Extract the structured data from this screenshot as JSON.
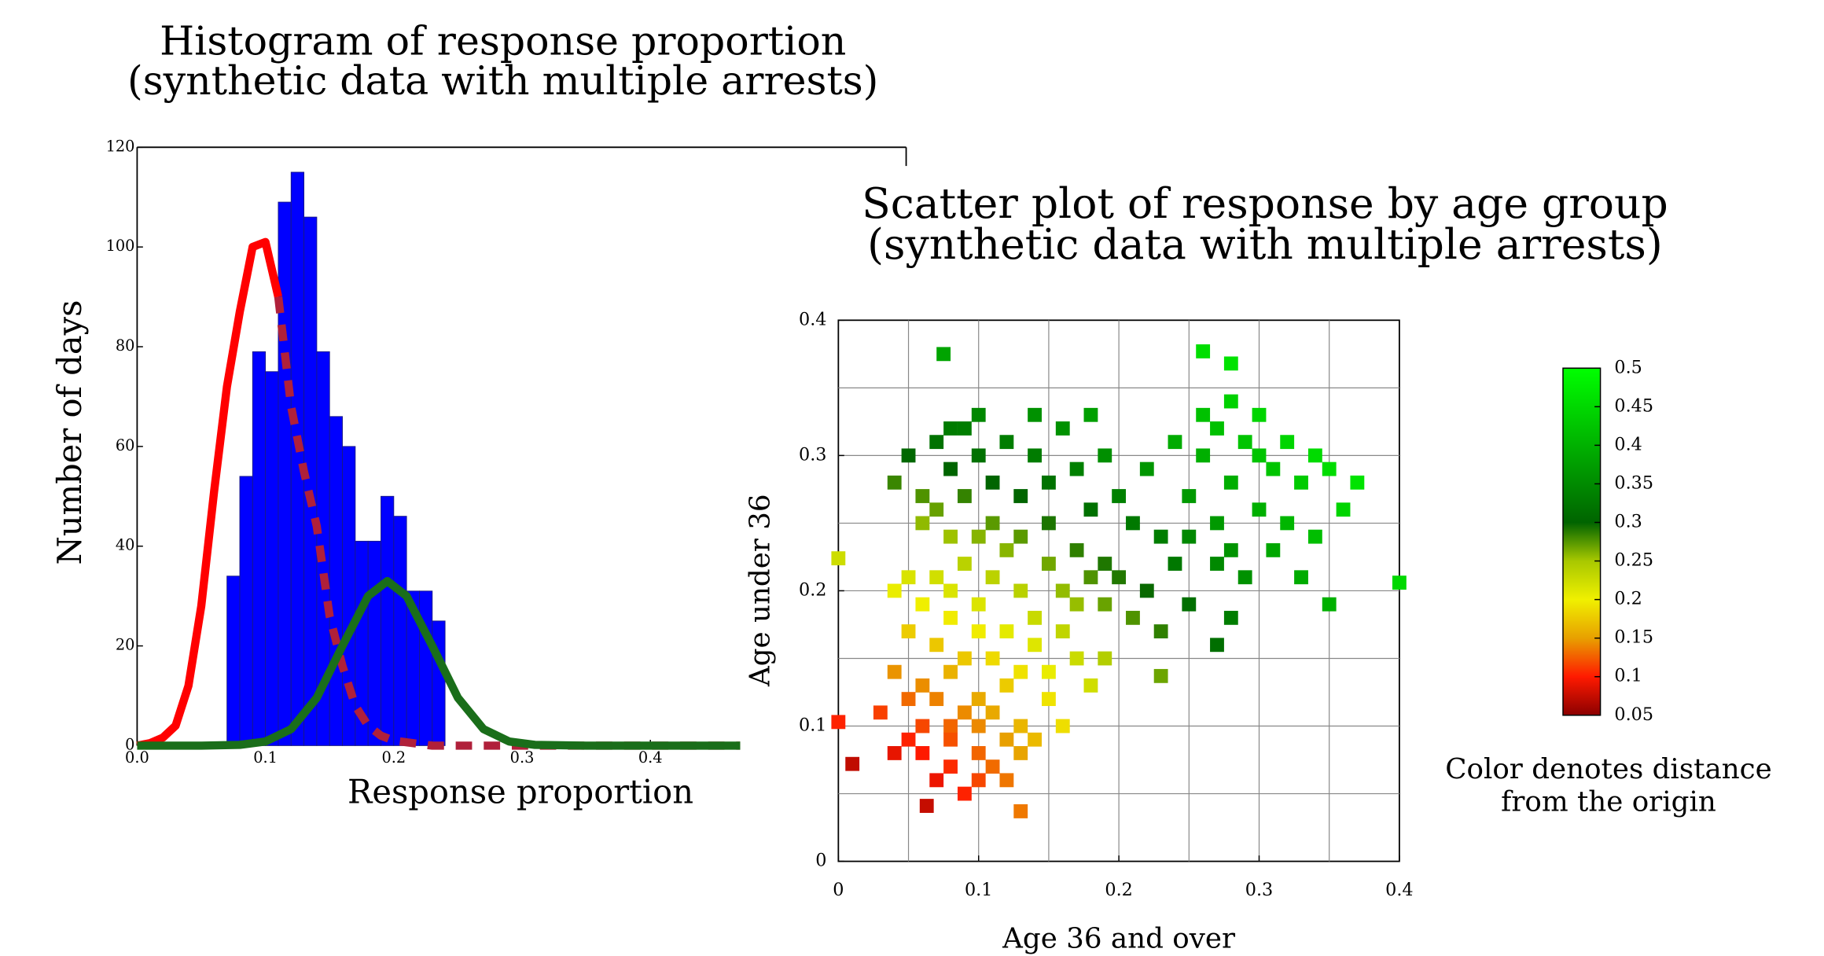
{
  "chart_data": [
    {
      "type": "histogram",
      "title": "Histogram of response proportion",
      "subtitle": "(synthetic data with multiple arrests)",
      "xlabel": "Response proportion",
      "ylabel": "Number of days",
      "bins": [
        0.07,
        0.08,
        0.09,
        0.1,
        0.11,
        0.12,
        0.13,
        0.14,
        0.15,
        0.16,
        0.17,
        0.18,
        0.19,
        0.2,
        0.21,
        0.22,
        0.23,
        0.24
      ],
      "counts": [
        34,
        54,
        79,
        75,
        109,
        115,
        106,
        79,
        66,
        60,
        41,
        41,
        50,
        46,
        31,
        31,
        25
      ],
      "color": "#0000ff",
      "xlim": [
        0,
        0.47
      ],
      "ylim": [
        0,
        120
      ],
      "xticks": [
        {
          "value": 0,
          "label": "0.0"
        },
        0.1,
        0.2,
        0.3,
        0.4
      ],
      "yticks": [
        0,
        20,
        40,
        60,
        80,
        100,
        120
      ],
      "curves": [
        {
          "color": "#ff0000",
          "dash": false,
          "x": [
            0,
            0.01,
            0.02,
            0.03,
            0.04,
            0.05,
            0.06,
            0.07,
            0.08,
            0.09,
            0.1,
            0.11
          ],
          "values": [
            0,
            0.5,
            1.6,
            4,
            12,
            28,
            51,
            72,
            87,
            100,
            101,
            90
          ]
        },
        {
          "color": "#b0203a",
          "dash": true,
          "x": [
            0.11,
            0.12,
            0.13,
            0.14,
            0.15,
            0.16,
            0.17,
            0.18,
            0.19,
            0.2,
            0.23,
            0.47
          ],
          "values": [
            90,
            68,
            55,
            44,
            26,
            16,
            8,
            4,
            2,
            1,
            0,
            0
          ]
        },
        {
          "color": "#1a6e1a",
          "dash": false,
          "x": [
            0,
            0.05,
            0.08,
            0.1,
            0.12,
            0.14,
            0.16,
            0.18,
            0.195,
            0.21,
            0.23,
            0.25,
            0.27,
            0.29,
            0.31,
            0.35,
            0.47
          ],
          "values": [
            0,
            0,
            0.15,
            0.83,
            3.3,
            9.6,
            20,
            30,
            33,
            30,
            20,
            9.6,
            3.3,
            0.83,
            0.15,
            0,
            0
          ]
        }
      ]
    },
    {
      "type": "scatter",
      "title": "Scatter plot of response by age group",
      "subtitle": "(synthetic data with multiple arrests)",
      "xlabel": "Age 36 and over",
      "ylabel": "Age under 36",
      "xlim": [
        0,
        0.4
      ],
      "ylim": [
        0,
        0.4
      ],
      "xticks": [
        0,
        0.1,
        0.2,
        0.3,
        0.4
      ],
      "yticks": [
        0,
        0.1,
        0.2,
        0.3,
        0.4
      ],
      "xgrid": [
        0.05,
        0.1,
        0.15,
        0.2,
        0.25,
        0.3,
        0.35
      ],
      "ygrid": [
        0.05,
        0.1,
        0.15,
        0.2,
        0.25,
        0.3,
        0.35
      ],
      "x": [
        0.06,
        0.07,
        0.08,
        0.09,
        0.1,
        0.05,
        0.08,
        0.11,
        0.12,
        0.03,
        0.04,
        0.07,
        0.09,
        0.1,
        0.06,
        0.12,
        0.13,
        0.05,
        0.08,
        0.1,
        0.04,
        0.06,
        0.08,
        0.1,
        0.11,
        0.13,
        0.14,
        0.12,
        0.09,
        0.07,
        0.05,
        0.06,
        0.08,
        0.1,
        0.11,
        0.13,
        0.15,
        0.16,
        0.15,
        0.14,
        0.12,
        0.1,
        0.08,
        0.07,
        0.05,
        0.04,
        0.09,
        0.11,
        0.13,
        0.14,
        0.16,
        0.17,
        0.18,
        0.19,
        0.17,
        0.16,
        0.15,
        0.12,
        0.1,
        0.08,
        0.04,
        0.05,
        0.06,
        0.07,
        0.08,
        0.09,
        0.1,
        0.11,
        0.12,
        0.13,
        0.14,
        0.15,
        0.16,
        0.17,
        0.18,
        0.19,
        0.2,
        0.21,
        0.22,
        0.23,
        0.06,
        0.07,
        0.09,
        0.11,
        0.13,
        0.15,
        0.17,
        0.19,
        0.2,
        0.22,
        0.24,
        0.25,
        0.21,
        0.19,
        0.18,
        0.23,
        0.1,
        0.08,
        0.14,
        0.18,
        0.25,
        0.26,
        0.27,
        0.28,
        0.29,
        0.3,
        0.31,
        0.32,
        0.33,
        0.34,
        0.26,
        0.28,
        0.3,
        0.32,
        0.35,
        0.36,
        0.27,
        0.29,
        0.31,
        0.33,
        0.24,
        0.27,
        0.3,
        0.25,
        0.28,
        0.35,
        0.37,
        0.34,
        0.28,
        0.27,
        0.075,
        0.26,
        0.28,
        0,
        0,
        0.4,
        0.13,
        0.063,
        0.23,
        0.01
      ],
      "y": [
        0.08,
        0.06,
        0.07,
        0.05,
        0.08,
        0.09,
        0.1,
        0.07,
        0.09,
        0.11,
        0.08,
        0.12,
        0.11,
        0.06,
        0.1,
        0.06,
        0.08,
        0.12,
        0.09,
        0.1,
        0.14,
        0.13,
        0.14,
        0.12,
        0.11,
        0.1,
        0.09,
        0.13,
        0.15,
        0.16,
        0.17,
        0.19,
        0.18,
        0.17,
        0.15,
        0.14,
        0.12,
        0.1,
        0.14,
        0.16,
        0.17,
        0.19,
        0.2,
        0.21,
        0.21,
        0.2,
        0.22,
        0.21,
        0.2,
        0.18,
        0.17,
        0.15,
        0.13,
        0.15,
        0.19,
        0.2,
        0.22,
        0.23,
        0.24,
        0.24,
        0.28,
        0.3,
        0.27,
        0.31,
        0.29,
        0.32,
        0.3,
        0.28,
        0.31,
        0.27,
        0.3,
        0.28,
        0.32,
        0.29,
        0.26,
        0.3,
        0.27,
        0.25,
        0.29,
        0.24,
        0.25,
        0.26,
        0.27,
        0.25,
        0.24,
        0.25,
        0.23,
        0.22,
        0.21,
        0.2,
        0.22,
        0.19,
        0.18,
        0.19,
        0.21,
        0.17,
        0.33,
        0.32,
        0.33,
        0.33,
        0.27,
        0.3,
        0.25,
        0.28,
        0.31,
        0.26,
        0.29,
        0.25,
        0.28,
        0.24,
        0.33,
        0.34,
        0.33,
        0.31,
        0.29,
        0.26,
        0.22,
        0.21,
        0.23,
        0.21,
        0.31,
        0.32,
        0.3,
        0.24,
        0.23,
        0.19,
        0.28,
        0.3,
        0.18,
        0.16,
        0.375,
        0.377,
        0.368,
        0.224,
        0.103,
        0.206,
        0.037,
        0.041,
        0.137,
        0.072
      ],
      "colormap": [
        {
          "value": 0.05,
          "color": "#8b0000"
        },
        {
          "value": 0.1,
          "color": "#ff1a00"
        },
        {
          "value": 0.15,
          "color": "#e8a000"
        },
        {
          "value": 0.2,
          "color": "#f0f000"
        },
        {
          "value": 0.25,
          "color": "#a8c800"
        },
        {
          "value": 0.3,
          "color": "#006400"
        },
        {
          "value": 0.5,
          "color": "#00ff00"
        }
      ],
      "colorbar": {
        "lim": [
          0.05,
          0.5
        ],
        "ticks": [
          0.05,
          0.1,
          0.15,
          0.2,
          0.25,
          0.3,
          0.35,
          0.4,
          0.45,
          0.5
        ]
      },
      "annotation": [
        "Color denotes distance",
        "from the origin"
      ]
    }
  ]
}
